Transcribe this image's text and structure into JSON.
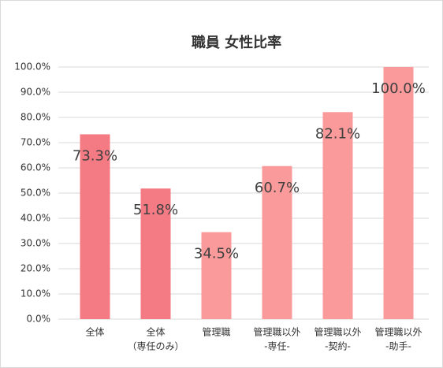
{
  "chart_data": {
    "type": "bar",
    "title": "職員 女性比率",
    "categories": [
      [
        "全体"
      ],
      [
        "全体",
        "（専任のみ）"
      ],
      [
        "管理職"
      ],
      [
        "管理職以外",
        "-専任-"
      ],
      [
        "管理職以外",
        "-契約-"
      ],
      [
        "管理職以外",
        "-助手-"
      ]
    ],
    "values": [
      73.3,
      51.8,
      34.5,
      60.7,
      82.1,
      100.0
    ],
    "value_labels": [
      "73.3%",
      "51.8%",
      "34.5%",
      "60.7%",
      "82.1%",
      "100.0%"
    ],
    "colors": [
      "#f47a83",
      "#f47a83",
      "#fb9a9a",
      "#fb9a9a",
      "#fb9a9a",
      "#fb9a9a"
    ],
    "ylim": [
      0,
      100
    ],
    "yticks": [
      {
        "value": 0,
        "label": "0.0%"
      },
      {
        "value": 10,
        "label": "10.0%"
      },
      {
        "value": 20,
        "label": "20.0%"
      },
      {
        "value": 30,
        "label": "30.0%"
      },
      {
        "value": 40,
        "label": "40.0%"
      },
      {
        "value": 50,
        "label": "50.0%"
      },
      {
        "value": 60,
        "label": "60.0%"
      },
      {
        "value": 70,
        "label": "70.0%"
      },
      {
        "value": 80,
        "label": "80.0%"
      },
      {
        "value": 90,
        "label": "90.0%"
      },
      {
        "value": 100,
        "label": "100.0%"
      }
    ],
    "grid": true
  }
}
